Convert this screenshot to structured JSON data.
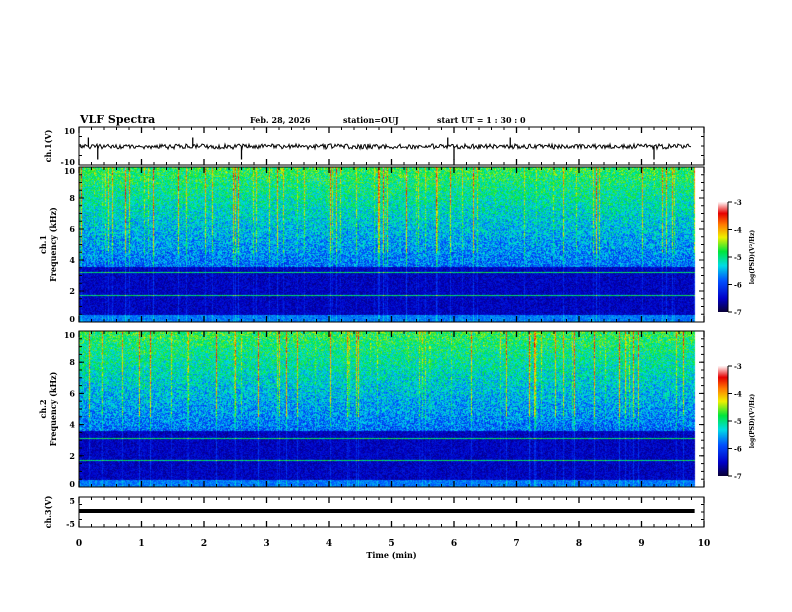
{
  "header": {
    "title": "VLF Spectra",
    "date": "Feb. 28, 2026",
    "station": "station=OUJ",
    "start_ut": "start  UT =   1 : 30 : 0"
  },
  "colors": {
    "axis": "#000000",
    "background": "#ffffff"
  },
  "chart_data": [
    {
      "type": "line",
      "name": "ch1-waveform",
      "ylabel": "ch.1(V)",
      "ylim": [
        -10,
        10
      ],
      "yticks": [
        "10",
        "-10"
      ],
      "xlim": [
        0,
        10
      ],
      "description_values": {
        "mean": 0,
        "noise_amplitude": 1.5,
        "spike_times_min": [
          0.15,
          0.3,
          1.82,
          2.6,
          5.9,
          6.0,
          6.9,
          9.2
        ]
      }
    },
    {
      "type": "heatmap",
      "name": "ch1-spectrogram",
      "ylabel": "ch.1\nFrequency (kHz)",
      "ylim": [
        0,
        10
      ],
      "yticks": [
        "0",
        "2",
        "4",
        "6",
        "8",
        "10"
      ],
      "xlim": [
        0,
        9.85
      ],
      "colorbar": {
        "label": "log(PSD)(V²/Hz)",
        "range": [
          -7,
          -3
        ],
        "ticks": [
          "-3",
          "-4",
          "-5",
          "-6",
          "-7"
        ]
      },
      "seed": 11
    },
    {
      "type": "heatmap",
      "name": "ch2-spectrogram",
      "ylabel": "ch.2\nFrequency (kHz)",
      "ylim": [
        0,
        10
      ],
      "yticks": [
        "0",
        "2",
        "4",
        "6",
        "8",
        "10"
      ],
      "xlim": [
        0,
        9.85
      ],
      "colorbar": {
        "label": "log(PSD)(V²/Hz)",
        "range": [
          -7,
          -3
        ],
        "ticks": [
          "-3",
          "-4",
          "-5",
          "-6",
          "-7"
        ]
      },
      "seed": 23
    },
    {
      "type": "line",
      "name": "ch3-waveform",
      "ylabel": "ch.3(V)",
      "ylim": [
        -5,
        5
      ],
      "yticks": [
        "5",
        "-5"
      ],
      "xlim": [
        0,
        9.85
      ],
      "x": [
        0,
        9.85
      ],
      "y": [
        0,
        0
      ]
    }
  ],
  "xaxis": {
    "label": "Time (min)",
    "range": [
      0,
      10
    ],
    "ticks": [
      "0",
      "1",
      "2",
      "3",
      "4",
      "5",
      "6",
      "7",
      "8",
      "9",
      "10"
    ]
  }
}
